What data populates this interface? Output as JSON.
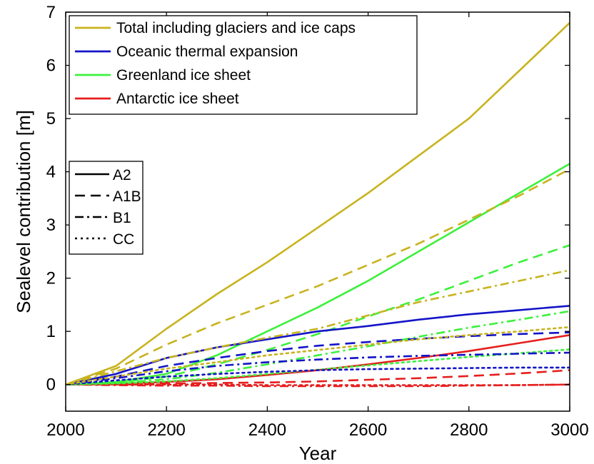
{
  "chart_data": {
    "type": "line",
    "title": "",
    "xlabel": "Year",
    "ylabel": "Sealevel contribution [m]",
    "xlim": [
      2000,
      3000
    ],
    "ylim": [
      -0.5,
      7
    ],
    "xticks": [
      2000,
      2200,
      2400,
      2600,
      2800,
      3000
    ],
    "yticks": [
      0,
      1,
      2,
      3,
      4,
      5,
      6,
      7
    ],
    "grid": false,
    "color_legend": {
      "placement": "top-left",
      "entries": [
        {
          "label": "Total including glaciers and ice caps",
          "color": "#c8b31e"
        },
        {
          "label": "Oceanic thermal expansion",
          "color": "#1414c8"
        },
        {
          "label": "Greenland ice sheet",
          "color": "#3cf03c"
        },
        {
          "label": "Antarctic ice sheet",
          "color": "#e61e1e"
        }
      ]
    },
    "style_legend": {
      "placement": "middle-left",
      "entries": [
        {
          "label": "A2",
          "style": "solid"
        },
        {
          "label": "A1B",
          "style": "dashed"
        },
        {
          "label": "B1",
          "style": "dashdot"
        },
        {
          "label": "CC",
          "style": "dotted"
        }
      ]
    },
    "series": [
      {
        "name": "Total including glaciers and ice caps",
        "scenario": "A2",
        "color": "#c8b31e",
        "style": "solid",
        "x": [
          2000,
          2100,
          2200,
          2300,
          2400,
          2500,
          2600,
          2700,
          2800,
          2900,
          3000
        ],
        "y": [
          0,
          0.35,
          1.05,
          1.7,
          2.3,
          2.95,
          3.6,
          4.3,
          5.0,
          5.9,
          6.8
        ]
      },
      {
        "name": "Total including glaciers and ice caps",
        "scenario": "A1B",
        "color": "#c8b31e",
        "style": "dashed",
        "x": [
          2000,
          2100,
          2200,
          2300,
          2400,
          2500,
          2600,
          2700,
          2800,
          2900,
          3000
        ],
        "y": [
          0,
          0.3,
          0.75,
          1.15,
          1.5,
          1.85,
          2.25,
          2.65,
          3.1,
          3.55,
          4.05
        ]
      },
      {
        "name": "Total including glaciers and ice caps",
        "scenario": "B1",
        "color": "#c8b31e",
        "style": "dashdot",
        "x": [
          2000,
          2100,
          2200,
          2300,
          2400,
          2500,
          2600,
          2700,
          2800,
          2900,
          3000
        ],
        "y": [
          0,
          0.25,
          0.5,
          0.7,
          0.88,
          1.05,
          1.3,
          1.55,
          1.75,
          1.95,
          2.15
        ]
      },
      {
        "name": "Total including glaciers and ice caps",
        "scenario": "CC",
        "color": "#c8b31e",
        "style": "dotted",
        "x": [
          2000,
          2100,
          2200,
          2300,
          2400,
          2500,
          2600,
          2700,
          2800,
          2900,
          3000
        ],
        "y": [
          0,
          0.15,
          0.3,
          0.42,
          0.55,
          0.65,
          0.75,
          0.85,
          0.93,
          1.0,
          1.08
        ]
      },
      {
        "name": "Oceanic thermal expansion",
        "scenario": "A2",
        "color": "#1414c8",
        "style": "solid",
        "x": [
          2000,
          2100,
          2200,
          2300,
          2400,
          2500,
          2600,
          2700,
          2800,
          2900,
          3000
        ],
        "y": [
          0,
          0.2,
          0.5,
          0.7,
          0.85,
          1.0,
          1.1,
          1.22,
          1.32,
          1.4,
          1.48
        ]
      },
      {
        "name": "Oceanic thermal expansion",
        "scenario": "A1B",
        "color": "#1414c8",
        "style": "dashed",
        "x": [
          2000,
          2100,
          2200,
          2300,
          2400,
          2500,
          2600,
          2700,
          2800,
          2900,
          3000
        ],
        "y": [
          0,
          0.15,
          0.35,
          0.5,
          0.63,
          0.73,
          0.8,
          0.86,
          0.91,
          0.95,
          0.98
        ]
      },
      {
        "name": "Oceanic thermal expansion",
        "scenario": "B1",
        "color": "#1414c8",
        "style": "dashdot",
        "x": [
          2000,
          2100,
          2200,
          2300,
          2400,
          2500,
          2600,
          2700,
          2800,
          2900,
          3000
        ],
        "y": [
          0,
          0.12,
          0.25,
          0.35,
          0.42,
          0.47,
          0.51,
          0.54,
          0.56,
          0.58,
          0.6
        ]
      },
      {
        "name": "Oceanic thermal expansion",
        "scenario": "CC",
        "color": "#1414c8",
        "style": "dotted",
        "x": [
          2000,
          2100,
          2200,
          2300,
          2400,
          2500,
          2600,
          2700,
          2800,
          2900,
          3000
        ],
        "y": [
          0,
          0.08,
          0.15,
          0.2,
          0.24,
          0.27,
          0.29,
          0.3,
          0.31,
          0.32,
          0.32
        ]
      },
      {
        "name": "Greenland ice sheet",
        "scenario": "A2",
        "color": "#3cf03c",
        "style": "solid",
        "x": [
          2000,
          2100,
          2200,
          2300,
          2400,
          2500,
          2600,
          2700,
          2800,
          2900,
          3000
        ],
        "y": [
          0,
          0.05,
          0.2,
          0.55,
          1.0,
          1.45,
          1.95,
          2.5,
          3.05,
          3.6,
          4.15
        ]
      },
      {
        "name": "Greenland ice sheet",
        "scenario": "A1B",
        "color": "#3cf03c",
        "style": "dashed",
        "x": [
          2000,
          2100,
          2200,
          2300,
          2400,
          2500,
          2600,
          2700,
          2800,
          2900,
          3000
        ],
        "y": [
          0,
          0.04,
          0.15,
          0.38,
          0.65,
          0.95,
          1.28,
          1.6,
          1.95,
          2.3,
          2.62
        ]
      },
      {
        "name": "Greenland ice sheet",
        "scenario": "B1",
        "color": "#3cf03c",
        "style": "dashdot",
        "x": [
          2000,
          2100,
          2200,
          2300,
          2400,
          2500,
          2600,
          2700,
          2800,
          2900,
          3000
        ],
        "y": [
          0,
          0.03,
          0.1,
          0.22,
          0.38,
          0.55,
          0.72,
          0.9,
          1.07,
          1.22,
          1.38
        ]
      },
      {
        "name": "Greenland ice sheet",
        "scenario": "CC",
        "color": "#3cf03c",
        "style": "dotted",
        "x": [
          2000,
          2100,
          2200,
          2300,
          2400,
          2500,
          2600,
          2700,
          2800,
          2900,
          3000
        ],
        "y": [
          0,
          0.02,
          0.06,
          0.12,
          0.2,
          0.28,
          0.36,
          0.44,
          0.52,
          0.59,
          0.66
        ]
      },
      {
        "name": "Antarctic ice sheet",
        "scenario": "A2",
        "color": "#e61e1e",
        "style": "solid",
        "x": [
          2000,
          2100,
          2200,
          2300,
          2400,
          2500,
          2600,
          2700,
          2800,
          2900,
          3000
        ],
        "y": [
          0,
          0.01,
          0.05,
          0.1,
          0.18,
          0.27,
          0.38,
          0.5,
          0.63,
          0.78,
          0.93
        ]
      },
      {
        "name": "Antarctic ice sheet",
        "scenario": "A1B",
        "color": "#e61e1e",
        "style": "dashed",
        "x": [
          2000,
          2100,
          2200,
          2300,
          2400,
          2500,
          2600,
          2700,
          2800,
          2900,
          3000
        ],
        "y": [
          0,
          0.0,
          0.02,
          0.03,
          0.04,
          0.06,
          0.09,
          0.12,
          0.16,
          0.21,
          0.27
        ]
      },
      {
        "name": "Antarctic ice sheet",
        "scenario": "B1",
        "color": "#e61e1e",
        "style": "dashdot",
        "x": [
          2000,
          2100,
          2200,
          2300,
          2400,
          2500,
          2600,
          2700,
          2800,
          2900,
          3000
        ],
        "y": [
          0,
          -0.01,
          -0.02,
          -0.02,
          -0.03,
          -0.03,
          -0.03,
          -0.03,
          -0.02,
          -0.01,
          0.0
        ]
      },
      {
        "name": "Antarctic ice sheet",
        "scenario": "CC",
        "color": "#e61e1e",
        "style": "dotted",
        "x": [
          2000,
          2100,
          2200,
          2300,
          2400,
          2500,
          2600,
          2700,
          2800,
          2900,
          3000
        ],
        "y": [
          0,
          0.0,
          0.0,
          0.0,
          -0.01,
          -0.01,
          -0.01,
          -0.01,
          -0.01,
          -0.01,
          0.0
        ]
      }
    ]
  }
}
